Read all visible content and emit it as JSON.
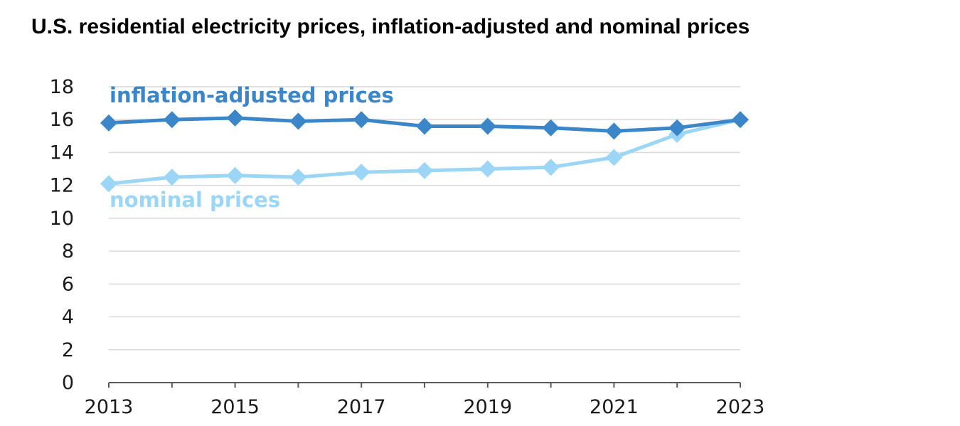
{
  "chart_data": {
    "type": "line",
    "title": "U.S. residential electricity prices, inflation-adjusted and nominal prices",
    "xlabel": "",
    "ylabel": "",
    "x": [
      2013,
      2014,
      2015,
      2016,
      2017,
      2018,
      2019,
      2020,
      2021,
      2022,
      2023
    ],
    "x_tick_labels": [
      "2013",
      "2015",
      "2017",
      "2019",
      "2021",
      "2023"
    ],
    "y_tick_labels": [
      "0",
      "2",
      "4",
      "6",
      "8",
      "10",
      "12",
      "14",
      "16",
      "18"
    ],
    "xlim": [
      2013,
      2023
    ],
    "ylim": [
      0,
      18
    ],
    "grid": "horizontal",
    "legend": "inline labels",
    "series": [
      {
        "name": "inflation-adjusted prices",
        "color": "#3a86c8",
        "marker": "diamond",
        "values": [
          15.8,
          16.0,
          16.1,
          15.9,
          16.0,
          15.6,
          15.6,
          15.5,
          15.3,
          15.5,
          16.0
        ]
      },
      {
        "name": "nominal prices",
        "color": "#9cd6f7",
        "marker": "diamond",
        "values": [
          12.1,
          12.5,
          12.6,
          12.5,
          12.8,
          12.9,
          13.0,
          13.1,
          13.7,
          15.1,
          16.0
        ]
      }
    ]
  }
}
